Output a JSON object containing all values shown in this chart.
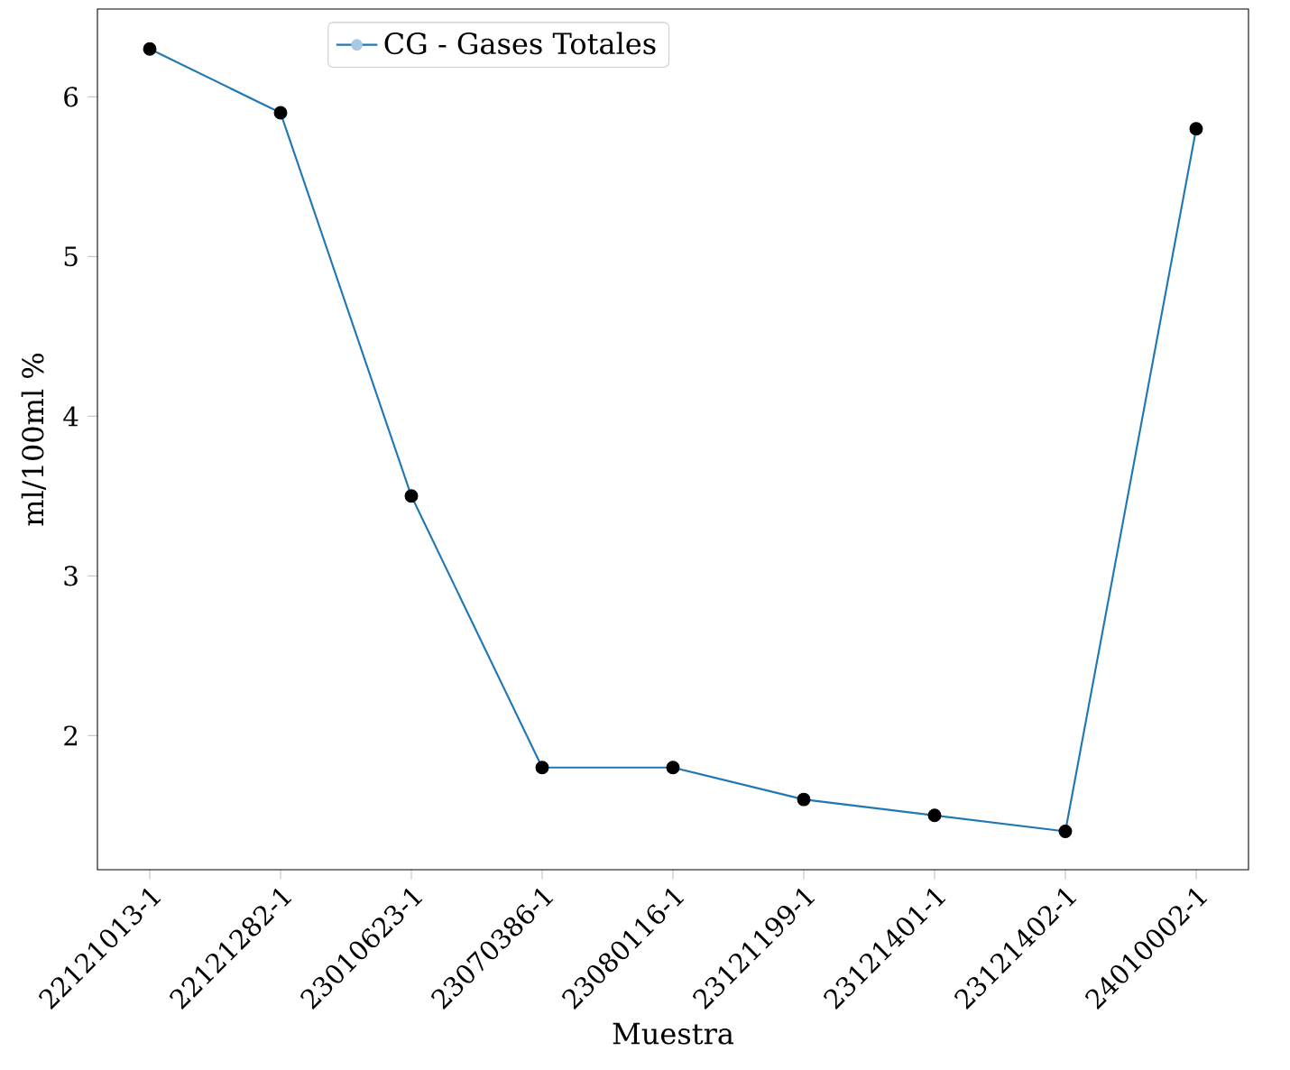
{
  "chart_data": {
    "type": "line",
    "xlabel": "Muestra",
    "ylabel": "ml/100ml %",
    "categories": [
      "22121013-1",
      "22121282-1",
      "23010623-1",
      "23070386-1",
      "23080116-1",
      "23121199-1",
      "23121401-1",
      "23121402-1",
      "24010002-1"
    ],
    "series": [
      {
        "name": "CG - Gases Totales",
        "color": "#1f77b4",
        "colors": [
          "#000000",
          "#000000",
          "#000000",
          "#000000",
          "#000000",
          "#000000",
          "#000000",
          "#000000",
          "#000000"
        ],
        "values": [
          6.3,
          5.9,
          3.5,
          1.8,
          1.8,
          1.6,
          1.5,
          1.4,
          5.8
        ]
      }
    ],
    "ylim": [
      1.16,
      6.55
    ],
    "yticks": [
      2,
      3,
      4,
      5,
      6
    ],
    "marker": "circle",
    "line_style": "solid",
    "legend": "top left",
    "grid": false
  }
}
